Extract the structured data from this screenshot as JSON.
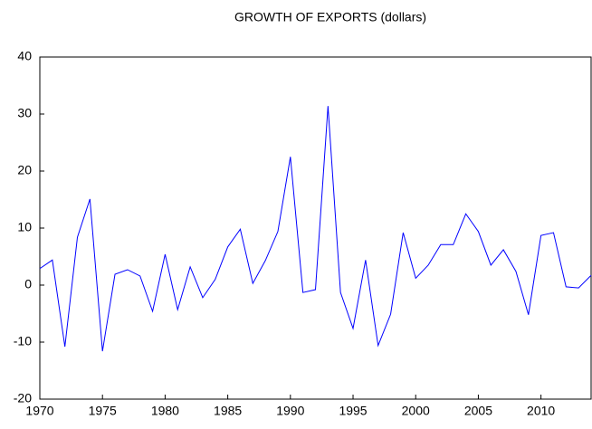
{
  "chart_data": {
    "type": "line",
    "title": "GROWTH OF EXPORTS (dollars)",
    "x": [
      1970,
      1971,
      1972,
      1973,
      1974,
      1975,
      1976,
      1977,
      1978,
      1979,
      1980,
      1981,
      1982,
      1983,
      1984,
      1985,
      1986,
      1987,
      1988,
      1989,
      1990,
      1991,
      1992,
      1993,
      1994,
      1995,
      1996,
      1997,
      1998,
      1999,
      2000,
      2001,
      2002,
      2003,
      2004,
      2005,
      2006,
      2007,
      2008,
      2009,
      2010,
      2011,
      2012,
      2013,
      2014
    ],
    "series": [
      {
        "color": "#0000ff",
        "values": [
          2.9,
          4.4,
          -10.8,
          8.4,
          15.1,
          -11.6,
          1.9,
          2.7,
          1.6,
          -4.6,
          5.4,
          -4.3,
          3.2,
          -2.2,
          1.0,
          6.7,
          9.8,
          0.3,
          4.3,
          9.4,
          22.5,
          -1.3,
          -0.8,
          31.4,
          -1.3,
          -7.6,
          4.4,
          -10.6,
          -5.1,
          9.2,
          1.2,
          3.5,
          7.1,
          7.1,
          12.5,
          9.4,
          3.5,
          6.2,
          2.4,
          -5.2,
          8.7,
          9.2,
          -0.3,
          -0.5,
          1.7
        ]
      }
    ],
    "xlim": [
      1970,
      2014
    ],
    "xticks": [
      1970,
      1975,
      1980,
      1985,
      1990,
      1995,
      2000,
      2005,
      2010
    ],
    "ylim": [
      -20,
      40
    ],
    "yticks": [
      -20,
      -10,
      0,
      10,
      20,
      30,
      40
    ]
  }
}
